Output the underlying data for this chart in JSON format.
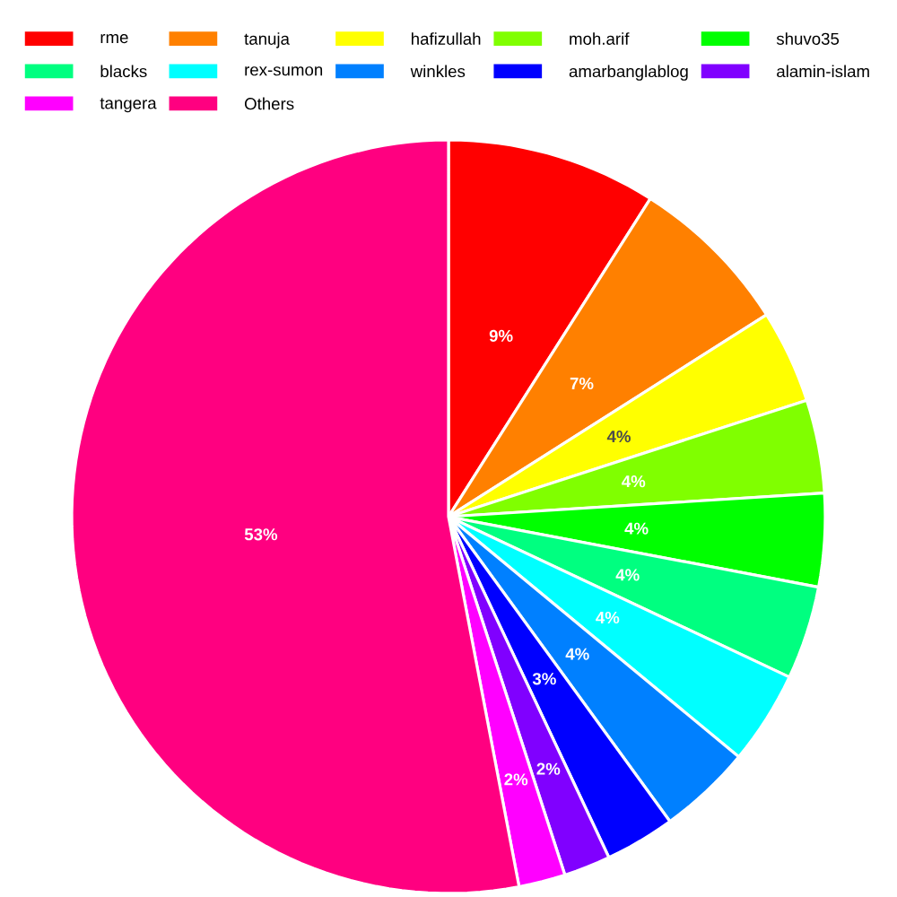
{
  "chart_data": {
    "type": "pie",
    "categories": [
      "rme",
      "tanuja",
      "hafizullah",
      "moh.arif",
      "shuvo35",
      "blacks",
      "rex-sumon",
      "winkles",
      "amarbanglablog",
      "alamin-islam",
      "tangera",
      "Others"
    ],
    "values": [
      9,
      7,
      4,
      4,
      4,
      4,
      4,
      4,
      3,
      2,
      2,
      53
    ],
    "value_labels": [
      "9%",
      "7%",
      "4%",
      "4%",
      "4%",
      "4%",
      "4%",
      "4%",
      "3%",
      "2%",
      "2%",
      "53%"
    ],
    "colors": [
      "#ff0000",
      "#ff8000",
      "#ffff00",
      "#80ff00",
      "#00ff00",
      "#00ff80",
      "#00ffff",
      "#0080ff",
      "#0000ff",
      "#8000ff",
      "#ff00ff",
      "#ff0080"
    ],
    "legend": "top"
  }
}
